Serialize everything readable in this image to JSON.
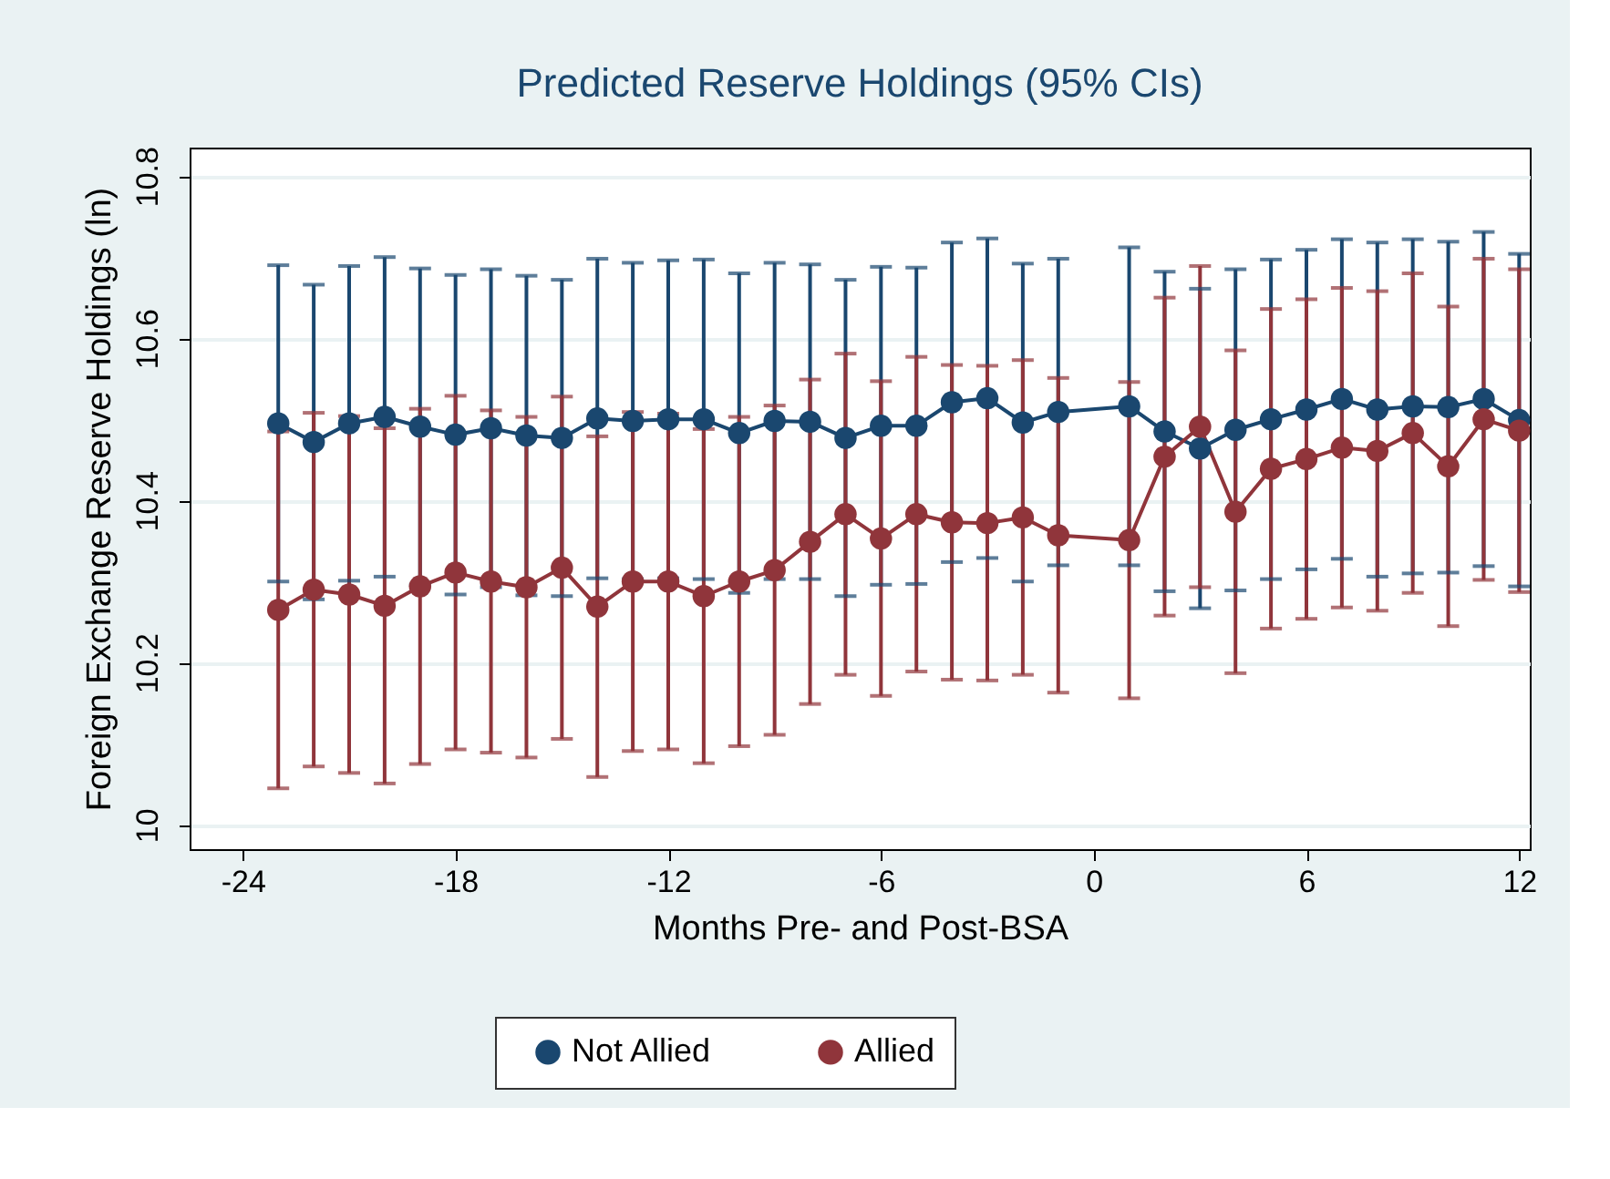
{
  "chart_data": {
    "type": "line",
    "title": "Predicted Reserve Holdings (95% CIs)",
    "xlabel": "Months Pre- and Post-BSA",
    "ylabel": "Foreign Exchange Reserve Holdings (ln)",
    "x": [
      -23,
      -22,
      -21,
      -20,
      -19,
      -18,
      -17,
      -16,
      -15,
      -14,
      -13,
      -12,
      -11,
      -10,
      -9,
      -8,
      -7,
      -6,
      -5,
      -4,
      -3,
      -2,
      -1,
      1,
      2,
      3,
      4,
      5,
      6,
      7,
      8,
      9,
      10,
      11,
      12
    ],
    "series": [
      {
        "name": "Not Allied",
        "color": "#1a476f",
        "values": [
          10.495,
          10.472,
          10.495,
          10.503,
          10.491,
          10.481,
          10.489,
          10.48,
          10.477,
          10.501,
          10.498,
          10.5,
          10.5,
          10.483,
          10.498,
          10.497,
          10.477,
          10.492,
          10.492,
          10.521,
          10.526,
          10.496,
          10.509,
          10.516,
          10.485,
          10.464,
          10.487,
          10.5,
          10.512,
          10.525,
          10.512,
          10.516,
          10.515,
          10.525,
          10.499
        ],
        "errors": [
          0.195,
          0.194,
          0.194,
          0.197,
          0.195,
          0.197,
          0.196,
          0.197,
          0.195,
          0.197,
          0.195,
          0.196,
          0.197,
          0.197,
          0.195,
          0.194,
          0.195,
          0.196,
          0.195,
          0.197,
          0.197,
          0.196,
          0.189,
          0.196,
          0.197,
          0.197,
          0.198,
          0.197,
          0.197,
          0.197,
          0.206,
          0.206,
          0.204,
          0.206,
          0.205
        ]
      },
      {
        "name": "Allied",
        "color": "#90353b",
        "values": [
          10.265,
          10.29,
          10.284,
          10.27,
          10.294,
          10.311,
          10.3,
          10.293,
          10.317,
          10.269,
          10.3,
          10.3,
          10.282,
          10.3,
          10.314,
          10.349,
          10.383,
          10.353,
          10.383,
          10.373,
          10.372,
          10.379,
          10.357,
          10.351,
          10.454,
          10.491,
          10.386,
          10.439,
          10.451,
          10.465,
          10.461,
          10.483,
          10.442,
          10.5,
          10.486
        ],
        "errors": [
          0.22,
          0.218,
          0.22,
          0.219,
          0.219,
          0.218,
          0.211,
          0.21,
          0.211,
          0.21,
          0.209,
          0.207,
          0.206,
          0.203,
          0.203,
          0.2,
          0.198,
          0.194,
          0.194,
          0.194,
          0.194,
          0.194,
          0.194,
          0.195,
          0.196,
          0.198,
          0.199,
          0.197,
          0.197,
          0.197,
          0.197,
          0.197,
          0.197,
          0.198,
          0.199
        ]
      }
    ],
    "xlim": [
      -25.5,
      12.3
    ],
    "xticks": [
      -24,
      -18,
      -12,
      -6,
      0,
      6,
      12
    ],
    "ylim": [
      9.97,
      10.835
    ],
    "yticks": [
      10,
      10.2,
      10.4,
      10.6,
      10.8
    ],
    "grid": "y",
    "legend": "bottom",
    "marker": "circle",
    "line_style": "solid"
  }
}
